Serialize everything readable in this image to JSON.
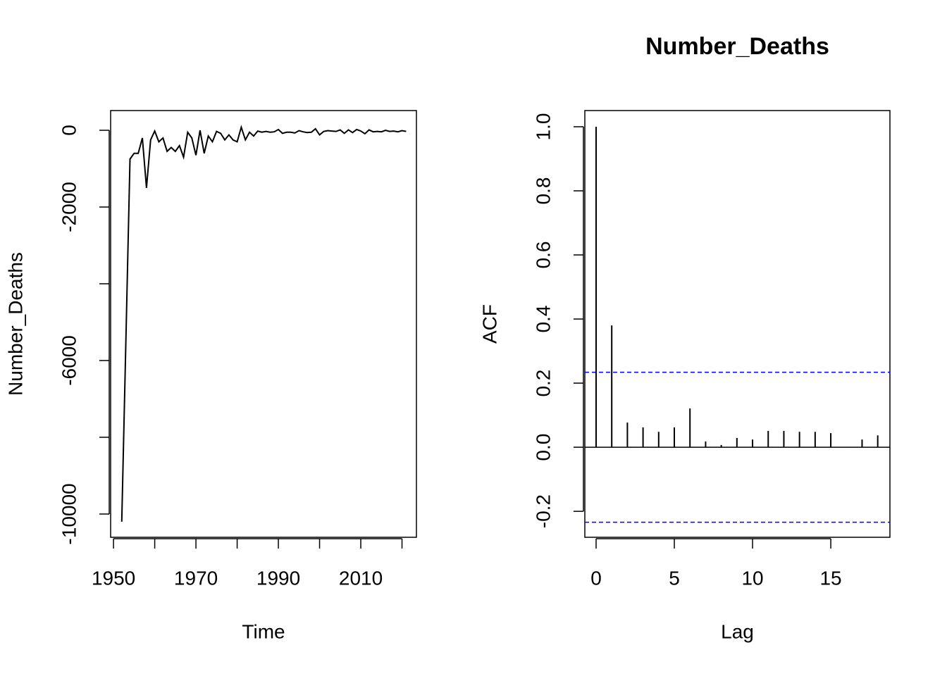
{
  "chart_data": [
    {
      "type": "line",
      "xlabel": "Time",
      "ylabel": "Number_Deaths",
      "x": [
        1952,
        1953,
        1954,
        1955,
        1956,
        1957,
        1958,
        1959,
        1960,
        1961,
        1962,
        1963,
        1964,
        1965,
        1966,
        1967,
        1968,
        1969,
        1970,
        1971,
        1972,
        1973,
        1974,
        1975,
        1976,
        1977,
        1978,
        1979,
        1980,
        1981,
        1982,
        1983,
        1984,
        1985,
        1986,
        1987,
        1988,
        1989,
        1990,
        1991,
        1992,
        1993,
        1994,
        1995,
        1996,
        1997,
        1998,
        1999,
        2000,
        2001,
        2002,
        2003,
        2004,
        2005,
        2006,
        2007,
        2008,
        2009,
        2010,
        2011,
        2012,
        2013,
        2014,
        2015,
        2016,
        2017,
        2018,
        2019,
        2020,
        2021
      ],
      "series": [
        {
          "color": "#000000",
          "values": [
            -10200,
            -5500,
            -750,
            -600,
            -600,
            -200,
            -1500,
            -250,
            -20,
            -300,
            -200,
            -550,
            -450,
            -550,
            -400,
            -700,
            -50,
            -200,
            -650,
            0,
            -600,
            -150,
            -300,
            -30,
            -80,
            -250,
            -120,
            -250,
            -300,
            80,
            -250,
            -50,
            -150,
            -20,
            -50,
            -30,
            -50,
            -40,
            20,
            -80,
            -50,
            -50,
            -70,
            -10,
            -40,
            -60,
            -50,
            40,
            -120,
            -30,
            -10,
            -20,
            -30,
            10,
            -80,
            10,
            -60,
            20,
            -20,
            -90,
            10,
            -40,
            -30,
            -40,
            0,
            -30,
            -20,
            -40,
            -10,
            -30
          ]
        }
      ],
      "xlim": [
        1949.3,
        2023.5
      ],
      "xticks": [
        1950,
        {
          "value": 1960,
          "label": null
        },
        1970,
        {
          "value": 1980,
          "label": null
        },
        1990,
        {
          "value": 2000,
          "label": null
        },
        2010,
        {
          "value": 2020,
          "label": null
        }
      ],
      "ylim": [
        -10606,
        514
      ],
      "yticks": [
        0,
        -2000,
        {
          "value": -4000,
          "label": null
        },
        -6000,
        {
          "value": -8000,
          "label": null
        },
        -10000
      ]
    },
    {
      "type": "stem",
      "title": "Number_Deaths",
      "xlabel": "Lag",
      "ylabel": "ACF",
      "x": [
        0,
        1,
        2,
        3,
        4,
        5,
        6,
        7,
        8,
        9,
        10,
        11,
        12,
        13,
        14,
        15,
        16,
        17,
        18
      ],
      "series": [
        {
          "color": "#000000",
          "values": [
            1.0,
            0.38,
            0.077,
            0.062,
            0.048,
            0.062,
            0.121,
            0.018,
            0.007,
            0.029,
            0.024,
            0.051,
            0.051,
            0.048,
            0.048,
            0.044,
            -0.001,
            0.024,
            0.037
          ]
        }
      ],
      "conf_limits": [
        0.234,
        -0.234
      ],
      "conf_color": "#0000ff",
      "xlim": [
        -0.72,
        18.78
      ],
      "xticks": [
        0,
        5,
        10,
        15
      ],
      "ylim": [
        -0.281,
        1.0505
      ],
      "yticks": [
        -0.2,
        {
          "value": 0,
          "label": "0.0"
        },
        0.2,
        0.4,
        0.6,
        0.8,
        {
          "value": 1,
          "label": "1.0"
        }
      ]
    }
  ]
}
